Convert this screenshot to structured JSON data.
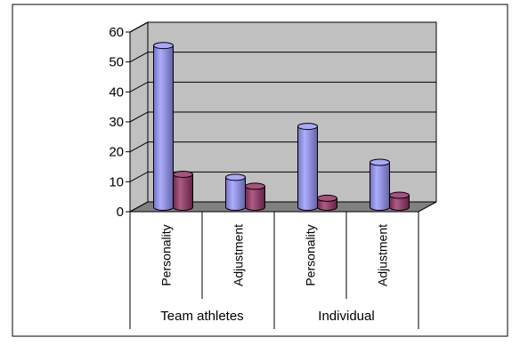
{
  "chart_data": {
    "type": "bar",
    "style": "3d-cylinder",
    "groups": [
      {
        "label": "Team athletes",
        "categories": [
          "Personality",
          "Adjustment"
        ]
      },
      {
        "label": "Individual",
        "categories": [
          "Personality",
          "Adjustment"
        ]
      }
    ],
    "categories": [
      "Personality",
      "Adjustment",
      "Personality",
      "Adjustment"
    ],
    "series": [
      {
        "color": "#9999ff",
        "values": [
          54,
          10,
          27,
          15
        ]
      },
      {
        "color": "#993366",
        "values": [
          11,
          7,
          3,
          4
        ]
      }
    ],
    "ylim": [
      0,
      60
    ],
    "yticks": [
      0,
      10,
      20,
      30,
      40,
      50,
      60
    ],
    "grid": true,
    "legend": "none",
    "wall_color": "#c0c0c0",
    "floor_color": "#808080"
  }
}
